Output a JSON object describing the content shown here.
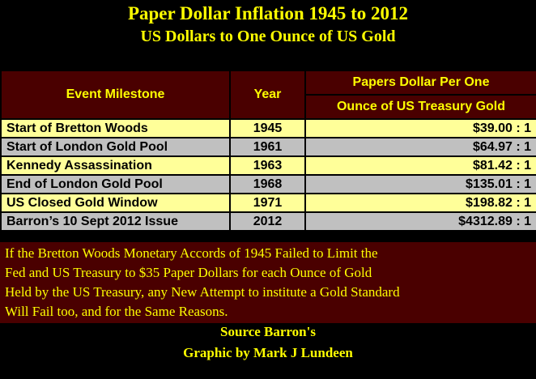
{
  "header": {
    "title": "Paper Dollar Inflation 1945 to 2012",
    "subtitle": "US Dollars to One Ounce of US Gold"
  },
  "table": {
    "columns": [
      "Event Milestone",
      "Year",
      [
        "Papers Dollar Per One",
        "Ounce of US Treasury Gold"
      ]
    ],
    "rows": [
      [
        "Start of Bretton Woods",
        "1945",
        "$39.00 : 1"
      ],
      [
        "Start of London Gold Pool",
        "1961",
        "$64.97 : 1"
      ],
      [
        "Kennedy Assassination",
        "1963",
        "$81.42 : 1"
      ],
      [
        "End of London Gold Pool",
        "1968",
        "$135.01 : 1"
      ],
      [
        "US Closed Gold Window",
        "1971",
        "$198.82 : 1"
      ],
      [
        "Barron’s 10 Sept 2012 Issue",
        "2012",
        "$4312.89 : 1"
      ]
    ]
  },
  "note": [
    "If the Bretton Woods Monetary Accords of 1945 Failed to Limit the",
    "Fed and US Treasury to $35 Paper Dollars for each Ounce of Gold",
    "Held by the US Treasury, any New Attempt to institute a Gold Standard",
    "Will Fail too, and for the Same Reasons."
  ],
  "footer": {
    "source": "Source Barron's",
    "credit": "Graphic by Mark J Lundeen"
  }
}
